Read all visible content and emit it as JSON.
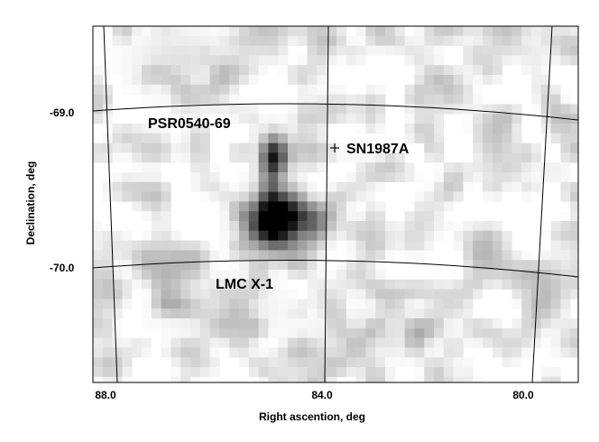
{
  "map": {
    "xlabel": "Right ascention, deg",
    "ylabel": "Declination, deg",
    "ra_ticks": [
      "88.0",
      "84.0",
      "80.0"
    ],
    "dec_ticks": [
      "-69.0",
      "-70.0"
    ],
    "sources": {
      "psr": "PSR0540-69",
      "sn": "SN1987A",
      "lmc": "LMC X-1"
    },
    "sn_marker": "+"
  },
  "colors": {
    "background": "#ffffff",
    "grid_line": "#000000",
    "max_intensity": "#000000"
  }
}
